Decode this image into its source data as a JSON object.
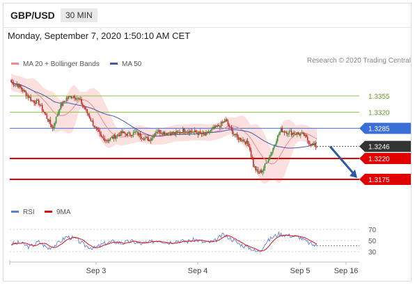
{
  "header": {
    "symbol": "GBP/USD",
    "timeframe": "30 MIN"
  },
  "timestamp": "Monday, September 7, 2020 1:50:10 AM CET",
  "legend": {
    "ma20": {
      "label": "MA 20 + Bollinger Bands",
      "color": "#f08a8a"
    },
    "ma50": {
      "label": "MA 50",
      "color": "#3f5aa8"
    }
  },
  "credit": "Research © 2020 Trading Central",
  "rsi_legend": {
    "rsi": {
      "label": "RSI",
      "color": "#5b7fd6"
    },
    "ma9": {
      "label": "9MA",
      "color": "#e01010"
    }
  },
  "colors": {
    "up": "#3a8f3a",
    "down": "#c62828",
    "resistance": "#8cc63f",
    "pivot": "#3b6fd8",
    "support": "#e00000",
    "last": "#333333",
    "arrow": "#2c5aa0"
  },
  "chart_data": {
    "type": "candlestick",
    "x_ticks": [
      "Sep 3",
      "Sep 4",
      "Sep 5",
      "Sep 16"
    ],
    "price_range": [
      1.313,
      1.34
    ],
    "last_price": "1.3246",
    "levels": [
      {
        "label": "1.3355",
        "value": 1.3355,
        "kind": "resistance"
      },
      {
        "label": "1.3320",
        "value": 1.332,
        "kind": "resistance"
      },
      {
        "label": "1.3285",
        "value": 1.3285,
        "kind": "pivot"
      },
      {
        "label": "1.3220",
        "value": 1.322,
        "kind": "support"
      },
      {
        "label": "1.3175",
        "value": 1.3175,
        "kind": "support"
      }
    ],
    "forecast_arrow": {
      "from_price": 1.3246,
      "to_price": 1.3175
    },
    "anchors": [
      [
        0,
        1.3385
      ],
      [
        6,
        1.3378
      ],
      [
        12,
        1.3362
      ],
      [
        18,
        1.3345
      ],
      [
        24,
        1.334
      ],
      [
        30,
        1.3312
      ],
      [
        36,
        1.3285
      ],
      [
        42,
        1.333
      ],
      [
        48,
        1.335
      ],
      [
        54,
        1.3356
      ],
      [
        60,
        1.3344
      ],
      [
        66,
        1.3318
      ],
      [
        72,
        1.329
      ],
      [
        78,
        1.3265
      ],
      [
        84,
        1.326
      ],
      [
        90,
        1.3268
      ],
      [
        96,
        1.3275
      ],
      [
        102,
        1.3272
      ],
      [
        108,
        1.3276
      ],
      [
        114,
        1.3266
      ],
      [
        120,
        1.326
      ],
      [
        126,
        1.328
      ],
      [
        132,
        1.3276
      ],
      [
        138,
        1.3275
      ],
      [
        144,
        1.3274
      ],
      [
        150,
        1.3282
      ],
      [
        156,
        1.3278
      ],
      [
        162,
        1.3275
      ],
      [
        168,
        1.327
      ],
      [
        174,
        1.3282
      ],
      [
        180,
        1.329
      ],
      [
        186,
        1.3302
      ],
      [
        191,
        1.328
      ],
      [
        196,
        1.3265
      ],
      [
        201,
        1.326
      ],
      [
        206,
        1.325
      ],
      [
        210,
        1.3205
      ],
      [
        214,
        1.3188
      ],
      [
        218,
        1.3195
      ],
      [
        222,
        1.3215
      ],
      [
        226,
        1.3235
      ],
      [
        230,
        1.3262
      ],
      [
        234,
        1.3282
      ],
      [
        238,
        1.3278
      ],
      [
        242,
        1.3276
      ],
      [
        248,
        1.3274
      ],
      [
        254,
        1.327
      ],
      [
        258,
        1.3256
      ],
      [
        262,
        1.3248
      ],
      [
        265,
        1.3246
      ]
    ],
    "rsi": {
      "ticks": [
        30,
        50,
        70
      ],
      "range": [
        20,
        80
      ],
      "anchors": [
        [
          0,
          44
        ],
        [
          8,
          46
        ],
        [
          16,
          38
        ],
        [
          24,
          48
        ],
        [
          32,
          36
        ],
        [
          40,
          44
        ],
        [
          48,
          57
        ],
        [
          56,
          53
        ],
        [
          64,
          41
        ],
        [
          72,
          36
        ],
        [
          80,
          44
        ],
        [
          88,
          48
        ],
        [
          96,
          45
        ],
        [
          104,
          49
        ],
        [
          112,
          44
        ],
        [
          120,
          47
        ],
        [
          128,
          51
        ],
        [
          136,
          46
        ],
        [
          144,
          50
        ],
        [
          152,
          48
        ],
        [
          160,
          52
        ],
        [
          168,
          46
        ],
        [
          176,
          48
        ],
        [
          184,
          61
        ],
        [
          190,
          54
        ],
        [
          196,
          46
        ],
        [
          202,
          40
        ],
        [
          208,
          36
        ],
        [
          212,
          30
        ],
        [
          216,
          32
        ],
        [
          220,
          44
        ],
        [
          226,
          55
        ],
        [
          232,
          62
        ],
        [
          238,
          60
        ],
        [
          244,
          58
        ],
        [
          250,
          56
        ],
        [
          256,
          48
        ],
        [
          262,
          42
        ],
        [
          266,
          40
        ]
      ]
    }
  }
}
